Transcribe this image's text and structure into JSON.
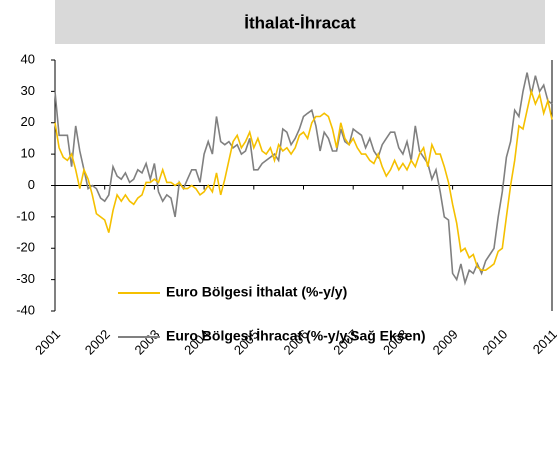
{
  "chart_data": {
    "type": "line",
    "title": "İthalat-İhracat",
    "categories": [
      "2001",
      null,
      null,
      null,
      null,
      null,
      null,
      null,
      null,
      null,
      null,
      null,
      "2002",
      null,
      null,
      null,
      null,
      null,
      null,
      null,
      null,
      null,
      null,
      null,
      "2003",
      null,
      null,
      null,
      null,
      null,
      null,
      null,
      null,
      null,
      null,
      null,
      "2004",
      null,
      null,
      null,
      null,
      null,
      null,
      null,
      null,
      null,
      null,
      null,
      "2005",
      null,
      null,
      null,
      null,
      null,
      null,
      null,
      null,
      null,
      null,
      null,
      "2006",
      null,
      null,
      null,
      null,
      null,
      null,
      null,
      null,
      null,
      null,
      null,
      "2007",
      null,
      null,
      null,
      null,
      null,
      null,
      null,
      null,
      null,
      null,
      null,
      "2008",
      null,
      null,
      null,
      null,
      null,
      null,
      null,
      null,
      null,
      null,
      null,
      "2009",
      null,
      null,
      null,
      null,
      null,
      null,
      null,
      null,
      null,
      null,
      null,
      "2010",
      null,
      null,
      null,
      null,
      null,
      null,
      null,
      null,
      null,
      null,
      null,
      "2011"
    ],
    "series": [
      {
        "name": "Euro Bölgesi İthalat (%-y/y)",
        "color": "#f5c000",
        "values": [
          20,
          12,
          9,
          8,
          10,
          5,
          -1,
          5,
          2,
          -3,
          -9,
          -10,
          -11,
          -15,
          -8,
          -3,
          -5,
          -3,
          -5,
          -6,
          -4,
          -3,
          1,
          1,
          2,
          1,
          5,
          1,
          1,
          0,
          1,
          -1,
          -1,
          0,
          -1,
          -3,
          -2,
          0,
          -2,
          4,
          -3,
          2,
          8,
          14,
          16,
          12,
          14,
          17,
          12,
          15,
          11,
          10,
          12,
          8,
          13,
          11,
          12,
          10,
          12,
          16,
          17,
          15,
          20,
          22,
          22,
          23,
          22,
          18,
          12,
          20,
          15,
          13,
          15,
          12,
          10,
          10,
          8,
          7,
          10,
          6,
          3,
          5,
          8,
          5,
          7,
          5,
          8,
          6,
          10,
          12,
          6,
          13,
          10,
          10,
          6,
          1,
          -6,
          -12,
          -21,
          -20,
          -23,
          -22,
          -26,
          -27,
          -27,
          -26,
          -25,
          -21,
          -20,
          -10,
          0,
          8,
          19,
          18,
          24,
          30,
          26,
          29,
          23,
          27,
          21
        ]
      },
      {
        "name": "Euro Bölgesi İhracat (%-y/y,Sağ Eksen)",
        "color": "#808080",
        "values": [
          30,
          16,
          16,
          16,
          6,
          19,
          11,
          5,
          -1,
          0,
          -1,
          -4,
          -5,
          -3,
          6,
          3,
          2,
          4,
          1,
          2,
          5,
          4,
          7,
          2,
          7,
          -2,
          -5,
          -3,
          -4,
          -10,
          1,
          -1,
          2,
          5,
          5,
          1,
          10,
          14,
          10,
          22,
          14,
          13,
          14,
          12,
          13,
          10,
          11,
          15,
          5,
          5,
          7,
          8,
          9,
          10,
          8,
          18,
          17,
          13,
          15,
          18,
          22,
          23,
          24,
          19,
          11,
          17,
          15,
          11,
          11,
          18,
          14,
          13,
          18,
          17,
          16,
          12,
          15,
          11,
          9,
          13,
          15,
          17,
          17,
          12,
          10,
          14,
          8,
          19,
          11,
          9,
          7,
          2,
          5,
          -2,
          -10,
          -11,
          -28,
          -30,
          -25,
          -31,
          -27,
          -28,
          -25,
          -28,
          -24,
          -22,
          -20,
          -10,
          -2,
          9,
          14,
          24,
          22,
          30,
          36,
          29,
          35,
          30,
          32,
          27,
          26
        ]
      }
    ],
    "ylim": [
      -40,
      40
    ],
    "yticks": [
      -40,
      -30,
      -20,
      -10,
      0,
      10,
      20,
      30,
      40
    ]
  }
}
